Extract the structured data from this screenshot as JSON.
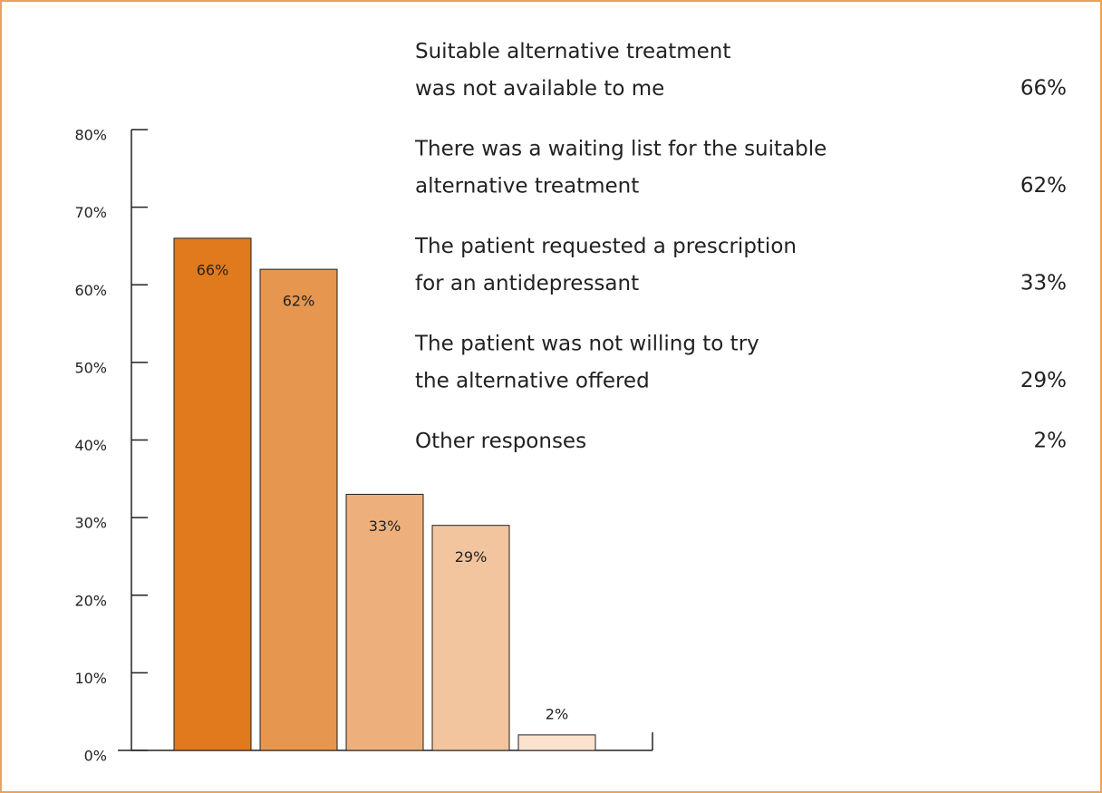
{
  "chart_data": {
    "type": "bar",
    "categories": [
      "Suitable alternative treatment\nwas not available to me",
      "There was a waiting list for the suitable\nalternative treatment",
      "The patient requested a prescription\nfor an antidepressant",
      "The patient was not willing to try\nthe alternative offered",
      "Other responses"
    ],
    "values": [
      66,
      62,
      33,
      29,
      2
    ],
    "value_labels": [
      "66%",
      "62%",
      "33%",
      "29%",
      "2%"
    ],
    "colors": [
      "#e07a1c",
      "#e6964f",
      "#edb07c",
      "#f2c59e",
      "#fae2cf"
    ],
    "ylim": [
      0,
      80
    ],
    "yticks": [
      {
        "value": 0,
        "label": "0%"
      },
      {
        "value": 10,
        "label": "10%"
      },
      {
        "value": 20,
        "label": "20%"
      },
      {
        "value": 30,
        "label": "30%"
      },
      {
        "value": 40,
        "label": "40%"
      },
      {
        "value": 50,
        "label": "50%"
      },
      {
        "value": 60,
        "label": "60%"
      },
      {
        "value": 70,
        "label": "70%"
      },
      {
        "value": 80,
        "label": "80%"
      }
    ]
  }
}
